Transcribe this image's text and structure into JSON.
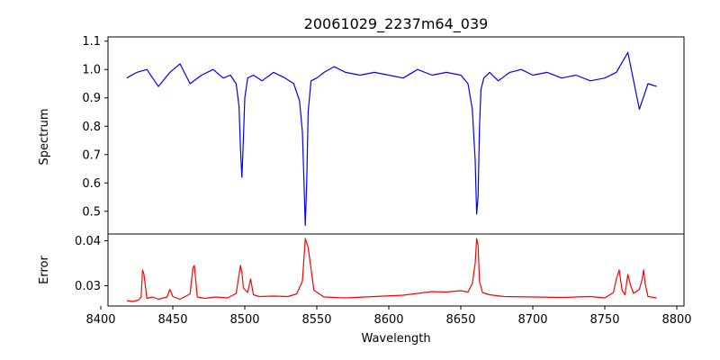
{
  "chart_data": [
    {
      "type": "line",
      "title": "20061029_2237m64_039",
      "xlabel": "",
      "ylabel": "Spectrum",
      "xlim": [
        8405,
        8805
      ],
      "ylim": [
        0.42,
        1.115
      ],
      "yticks": [
        "0.5",
        "0.6",
        "0.7",
        "0.8",
        "0.9",
        "1.0",
        "1.1"
      ],
      "ytick_values": [
        0.5,
        0.6,
        0.7,
        0.8,
        0.9,
        1.0,
        1.1
      ],
      "grid": false,
      "color": "#0000ff",
      "series": [
        {
          "name": "",
          "x": [
            8418,
            8425,
            8432,
            8440,
            8448,
            8455,
            8462,
            8470,
            8478,
            8485,
            8490,
            8494,
            8496,
            8497,
            8498,
            8499,
            8500,
            8502,
            8506,
            8512,
            8520,
            8528,
            8534,
            8538,
            8540,
            8541,
            8542,
            8543,
            8544,
            8546,
            8550,
            8555,
            8562,
            8570,
            8580,
            8590,
            8600,
            8610,
            8620,
            8630,
            8640,
            8650,
            8655,
            8658,
            8660,
            8661,
            8662,
            8663,
            8664,
            8666,
            8670,
            8676,
            8684,
            8692,
            8700,
            8710,
            8720,
            8730,
            8740,
            8750,
            8758,
            8766,
            8774,
            8780,
            8786
          ],
          "y": [
            0.97,
            0.99,
            1.0,
            0.94,
            0.99,
            1.02,
            0.95,
            0.98,
            1.0,
            0.97,
            0.98,
            0.95,
            0.87,
            0.72,
            0.62,
            0.75,
            0.9,
            0.97,
            0.98,
            0.96,
            0.99,
            0.97,
            0.95,
            0.89,
            0.78,
            0.62,
            0.45,
            0.6,
            0.85,
            0.96,
            0.97,
            0.99,
            1.01,
            0.99,
            0.98,
            0.99,
            0.98,
            0.97,
            1.0,
            0.98,
            0.99,
            0.98,
            0.95,
            0.86,
            0.68,
            0.49,
            0.55,
            0.8,
            0.93,
            0.97,
            0.99,
            0.96,
            0.99,
            1.0,
            0.98,
            0.99,
            0.97,
            0.98,
            0.96,
            0.97,
            0.99,
            1.06,
            0.86,
            0.95,
            0.94
          ]
        }
      ]
    },
    {
      "type": "line",
      "title": "",
      "xlabel": "Wavelength",
      "ylabel": "Error",
      "xlim": [
        8405,
        8805
      ],
      "ylim": [
        0.0255,
        0.0415
      ],
      "xticks": [
        "8400",
        "8450",
        "8500",
        "8550",
        "8600",
        "8650",
        "8700",
        "8750",
        "8800"
      ],
      "xtick_values": [
        8400,
        8450,
        8500,
        8550,
        8600,
        8650,
        8700,
        8750,
        8800
      ],
      "yticks": [
        "0.03",
        "0.04"
      ],
      "ytick_values": [
        0.03,
        0.04
      ],
      "grid": false,
      "color": "#ff0000",
      "series": [
        {
          "name": "",
          "x": [
            8418,
            8422,
            8426,
            8428,
            8429,
            8430,
            8432,
            8436,
            8440,
            8446,
            8448,
            8450,
            8455,
            8462,
            8464,
            8465,
            8467,
            8472,
            8480,
            8488,
            8494,
            8497,
            8498,
            8499,
            8502,
            8504,
            8506,
            8510,
            8520,
            8530,
            8536,
            8540,
            8542,
            8544,
            8548,
            8555,
            8570,
            8590,
            8610,
            8630,
            8640,
            8650,
            8655,
            8658,
            8660,
            8661,
            8662,
            8663,
            8665,
            8670,
            8680,
            8700,
            8720,
            8740,
            8750,
            8756,
            8758,
            8760,
            8762,
            8764,
            8766,
            8768,
            8770,
            8774,
            8776,
            8777,
            8778,
            8780,
            8786
          ],
          "y": [
            0.0267,
            0.0265,
            0.0268,
            0.0275,
            0.0335,
            0.0325,
            0.0272,
            0.0275,
            0.027,
            0.0275,
            0.0292,
            0.0276,
            0.027,
            0.0282,
            0.034,
            0.0345,
            0.0275,
            0.0272,
            0.0275,
            0.0273,
            0.0283,
            0.0345,
            0.033,
            0.0295,
            0.0285,
            0.0315,
            0.028,
            0.0276,
            0.0277,
            0.0276,
            0.0282,
            0.031,
            0.0405,
            0.0385,
            0.029,
            0.0275,
            0.0273,
            0.0276,
            0.0279,
            0.0287,
            0.0286,
            0.0289,
            0.0286,
            0.0305,
            0.035,
            0.0405,
            0.039,
            0.031,
            0.0285,
            0.028,
            0.0276,
            0.0275,
            0.0274,
            0.0276,
            0.0273,
            0.0285,
            0.0315,
            0.0335,
            0.029,
            0.028,
            0.0325,
            0.03,
            0.0283,
            0.0292,
            0.0315,
            0.0335,
            0.0305,
            0.0276,
            0.0273
          ]
        }
      ]
    }
  ]
}
